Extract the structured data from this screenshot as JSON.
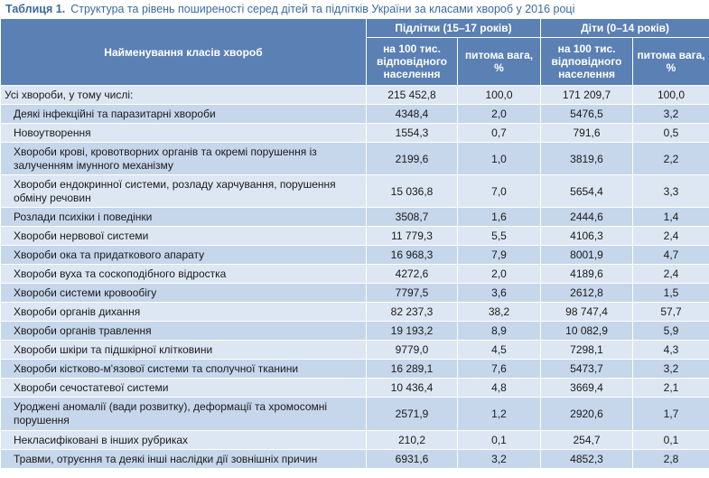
{
  "caption": {
    "label": "Таблиця 1.",
    "text": "Структура та рівень поширеності серед дітей та підлітків України за класами хвороб у 2016 році"
  },
  "header": {
    "name_col": "Найменування класів хвороб",
    "group1": "Підлітки (15–17 років)",
    "group2": "Діти (0–14 років)",
    "sub_rate": "на 100 тис. відповідного населення",
    "sub_share": "питома вага, %"
  },
  "rows": [
    {
      "name": "Усі хвороби, у тому числі:",
      "a_rate": "215 452,8",
      "a_share": "100,0",
      "c_rate": "171 209,7",
      "c_share": "100,0"
    },
    {
      "name": "Деякі інфекційні та паразитарні хвороби",
      "a_rate": "4348,4",
      "a_share": "2,0",
      "c_rate": "5476,5",
      "c_share": "3,2"
    },
    {
      "name": "Новоутворення",
      "a_rate": "1554,3",
      "a_share": "0,7",
      "c_rate": "791,6",
      "c_share": "0,5"
    },
    {
      "name": "Хвороби крові, кровотворних органів та окремі порушення із залученням імунного механізму",
      "a_rate": "2199,6",
      "a_share": "1,0",
      "c_rate": "3819,6",
      "c_share": "2,2"
    },
    {
      "name": "Хвороби ендокринної системи, розладу харчування, порушення обміну речовин",
      "a_rate": "15 036,8",
      "a_share": "7,0",
      "c_rate": "5654,4",
      "c_share": "3,3"
    },
    {
      "name": "Розлади психіки і поведінки",
      "a_rate": "3508,7",
      "a_share": "1,6",
      "c_rate": "2444,6",
      "c_share": "1,4"
    },
    {
      "name": "Хвороби нервової системи",
      "a_rate": "11 779,3",
      "a_share": "5,5",
      "c_rate": "4106,3",
      "c_share": "2,4"
    },
    {
      "name": "Хвороби ока та придаткового апарату",
      "a_rate": "16 968,3",
      "a_share": "7,9",
      "c_rate": "8001,9",
      "c_share": "4,7"
    },
    {
      "name": "Хвороби вуха та соскоподібного відростка",
      "a_rate": "4272,6",
      "a_share": "2,0",
      "c_rate": "4189,6",
      "c_share": "2,4"
    },
    {
      "name": "Хвороби системи кровообігу",
      "a_rate": "7797,5",
      "a_share": "3,6",
      "c_rate": "2612,8",
      "c_share": "1,5"
    },
    {
      "name": "Хвороби органів дихання",
      "a_rate": "82 237,3",
      "a_share": "38,2",
      "c_rate": "98 747,4",
      "c_share": "57,7"
    },
    {
      "name": "Хвороби органів травлення",
      "a_rate": "19 193,2",
      "a_share": "8,9",
      "c_rate": "10 082,9",
      "c_share": "5,9"
    },
    {
      "name": "Хвороби шкіри та підшкірної клітковини",
      "a_rate": "9779,0",
      "a_share": "4,5",
      "c_rate": "7298,1",
      "c_share": "4,3"
    },
    {
      "name": "Хвороби кістково-м'язової системи та сполучної тканини",
      "a_rate": "16 289,1",
      "a_share": "7,6",
      "c_rate": "5473,7",
      "c_share": "3,2"
    },
    {
      "name": "Хвороби сечостатевої системи",
      "a_rate": "10 436,4",
      "a_share": "4,8",
      "c_rate": "3669,4",
      "c_share": "2,1"
    },
    {
      "name": "Уроджені аномалії (вади розвитку), деформації та хромосомні порушення",
      "a_rate": "2571,9",
      "a_share": "1,2",
      "c_rate": "2920,6",
      "c_share": "1,7"
    },
    {
      "name": "Некласифіковані в інших рубриках",
      "a_rate": "210,2",
      "a_share": "0,1",
      "c_rate": "254,7",
      "c_share": "0,1"
    },
    {
      "name": "Травми, отруєння та деякі інші наслідки дії зовнішніх причин",
      "a_rate": "6931,6",
      "a_share": "3,2",
      "c_rate": "4852,3",
      "c_share": "2,8"
    }
  ]
}
